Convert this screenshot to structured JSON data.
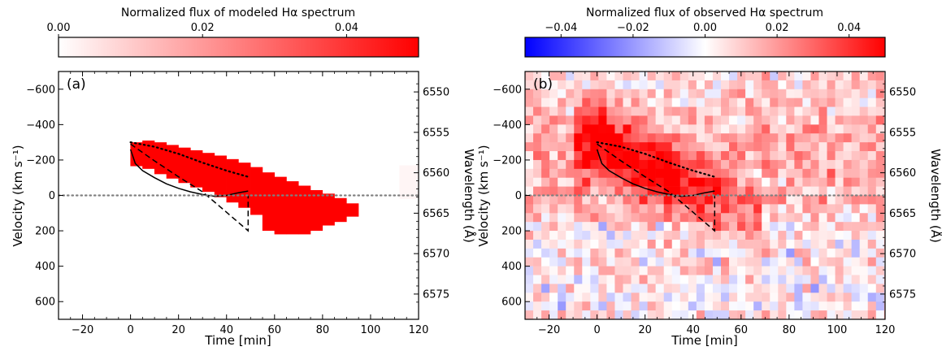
{
  "chart_data": [
    {
      "type": "heatmap",
      "panel_label": "(a)",
      "colorbar": {
        "title": "Normalized flux of modeled Hα spectrum",
        "range": [
          0.0,
          0.05
        ],
        "tick_values": [
          0.0,
          0.02,
          0.04
        ],
        "tick_labels": [
          "0.00",
          "0.02",
          "0.04"
        ],
        "colormap": [
          "#ffffff",
          "#ff0000"
        ]
      },
      "xlabel": "Time [min]",
      "ylabel": "Velocity (km s⁻¹)",
      "y2label": "Wavelength (Å)",
      "xlim": [
        -30,
        120
      ],
      "ylim": [
        -700,
        700
      ],
      "y_inverted": true,
      "x_ticks": [
        -20,
        0,
        20,
        40,
        60,
        80,
        100,
        120
      ],
      "x_tick_labels": [
        "−20",
        "0",
        "20",
        "40",
        "60",
        "80",
        "100",
        "120"
      ],
      "y_ticks": [
        -600,
        -400,
        -200,
        0,
        200,
        400,
        600
      ],
      "y_tick_labels": [
        "−600",
        "−400",
        "−200",
        "0",
        "200",
        "400",
        "600"
      ],
      "y2_ticks": [
        6550,
        6555,
        6560,
        6565,
        6570,
        6575
      ],
      "y2_tick_labels": [
        "6550",
        "6555",
        "6560",
        "6565",
        "6570",
        "6575"
      ],
      "rest_wavelength": 6562.8,
      "emission_band": [
        [
          0,
          -300,
          -165
        ],
        [
          5,
          -310,
          -150
        ],
        [
          10,
          -300,
          -120
        ],
        [
          15,
          -285,
          -95
        ],
        [
          20,
          -270,
          -70
        ],
        [
          25,
          -255,
          -45
        ],
        [
          30,
          -240,
          -20
        ],
        [
          35,
          -225,
          10
        ],
        [
          40,
          -205,
          40
        ],
        [
          45,
          -185,
          70
        ],
        [
          50,
          -160,
          110
        ],
        [
          55,
          -130,
          200
        ],
        [
          60,
          -105,
          220
        ],
        [
          65,
          -80,
          220
        ],
        [
          70,
          -55,
          220
        ],
        [
          75,
          -30,
          200
        ],
        [
          80,
          -10,
          170
        ],
        [
          85,
          15,
          150
        ],
        [
          90,
          45,
          120
        ]
      ],
      "emission_value": 0.05,
      "faint_patch": {
        "x": [
          112,
          120
        ],
        "y": [
          -170,
          20
        ],
        "value": 0.002
      },
      "overlays": [
        {
          "name": "solid",
          "dash": "solid",
          "x": [
            0,
            2,
            5,
            10,
            15,
            20,
            25,
            30,
            35,
            40,
            45,
            49
          ],
          "y": [
            -260,
            -180,
            -140,
            -100,
            -65,
            -40,
            -20,
            -5,
            5,
            0,
            -15,
            -25
          ]
        },
        {
          "name": "dashed",
          "dash": "dashed",
          "x": [
            0,
            10,
            20,
            30,
            40,
            49,
            49
          ],
          "y": [
            -290,
            -195,
            -105,
            -20,
            95,
            200,
            0
          ]
        },
        {
          "name": "dotted",
          "dash": "dotted",
          "x": [
            0,
            10,
            20,
            30,
            40,
            49
          ],
          "y": [
            -300,
            -275,
            -235,
            -185,
            -140,
            -105
          ]
        },
        {
          "name": "zero-line",
          "dash": "dotted",
          "color": "#808080",
          "x": [
            -30,
            120
          ],
          "y": [
            0,
            0
          ]
        }
      ]
    },
    {
      "type": "heatmap",
      "panel_label": "(b)",
      "colorbar": {
        "title": "Normalized flux of observed Hα spectrum",
        "range": [
          -0.05,
          0.05
        ],
        "tick_values": [
          -0.04,
          -0.02,
          0.0,
          0.02,
          0.04
        ],
        "tick_labels": [
          "−0.04",
          "−0.02",
          "0.00",
          "0.02",
          "0.04"
        ],
        "colormap": [
          "#0000ff",
          "#ffffff",
          "#ff0000"
        ]
      },
      "xlabel": "Time [min]",
      "ylabel": "Velocity (km s⁻¹)",
      "y2label": "Wavelength (Å)",
      "xlim": [
        -30,
        120
      ],
      "ylim": [
        -700,
        700
      ],
      "y_inverted": true,
      "x_ticks": [
        -20,
        0,
        20,
        40,
        60,
        80,
        100,
        120
      ],
      "x_tick_labels": [
        "−20",
        "0",
        "20",
        "40",
        "60",
        "80",
        "100",
        "120"
      ],
      "y_ticks": [
        -600,
        -400,
        -200,
        0,
        200,
        400,
        600
      ],
      "y_tick_labels": [
        "−600",
        "−400",
        "−200",
        "0",
        "200",
        "400",
        "600"
      ],
      "y2_ticks": [
        6550,
        6555,
        6560,
        6565,
        6570,
        6575
      ],
      "y2_tick_labels": [
        "6550",
        "6555",
        "6560",
        "6565",
        "6570",
        "6575"
      ],
      "rest_wavelength": 6562.8,
      "grid": {
        "time_step": 3.4,
        "velocity_step": 50
      },
      "overlays": [
        {
          "name": "solid",
          "dash": "solid",
          "x": [
            0,
            2,
            5,
            10,
            15,
            20,
            25,
            30,
            35,
            40,
            45,
            49
          ],
          "y": [
            -260,
            -180,
            -140,
            -100,
            -65,
            -40,
            -20,
            -5,
            5,
            0,
            -15,
            -25
          ]
        },
        {
          "name": "dashed",
          "dash": "dashed",
          "x": [
            0,
            10,
            20,
            30,
            40,
            49,
            49
          ],
          "y": [
            -290,
            -195,
            -105,
            -20,
            95,
            200,
            0
          ]
        },
        {
          "name": "dotted",
          "dash": "dotted",
          "x": [
            0,
            10,
            20,
            30,
            40,
            49
          ],
          "y": [
            -300,
            -275,
            -235,
            -185,
            -140,
            -105
          ]
        },
        {
          "name": "zero-line",
          "dash": "dotted",
          "color": "#808080",
          "x": [
            -30,
            120
          ],
          "y": [
            0,
            0
          ]
        }
      ]
    }
  ]
}
